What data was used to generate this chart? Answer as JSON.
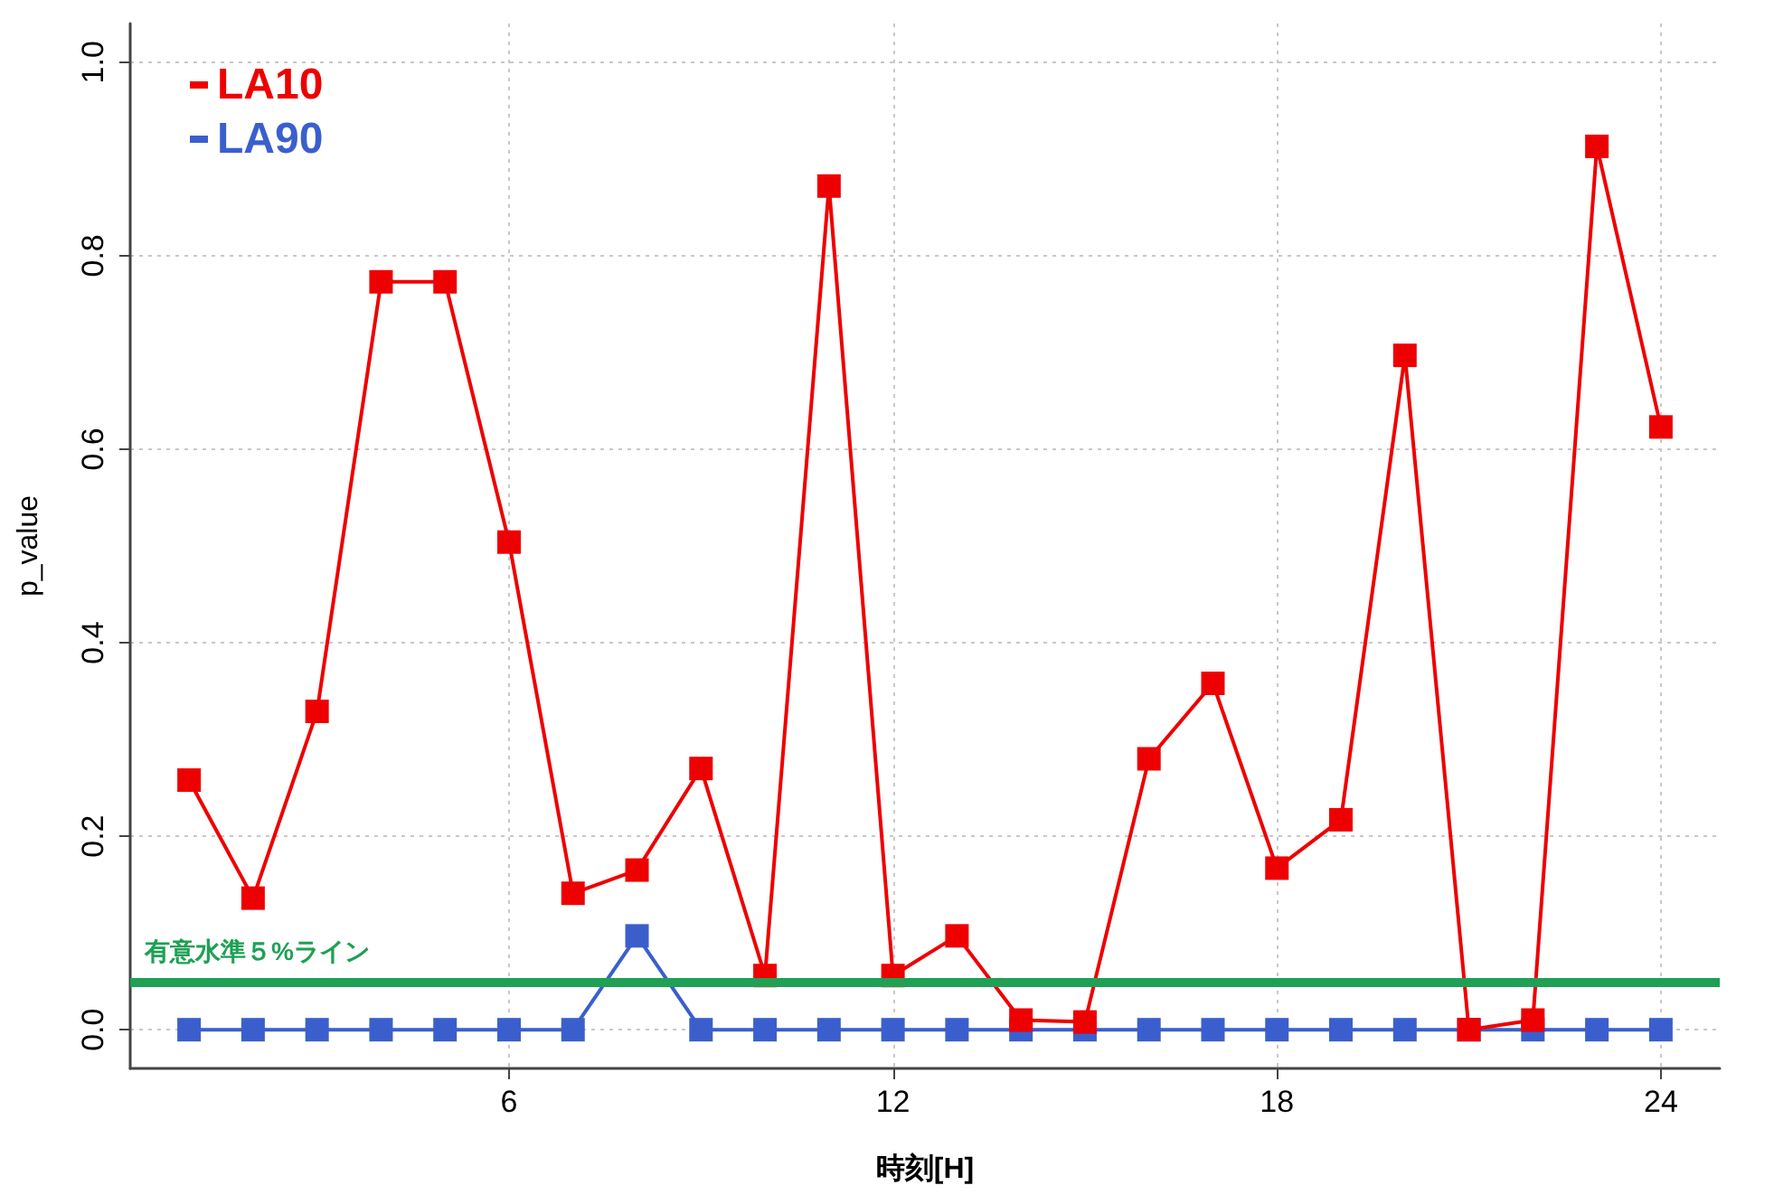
{
  "chart_data": {
    "type": "line",
    "xlabel": "時刻[H]",
    "ylabel": "p_value",
    "x": [
      1,
      2,
      3,
      4,
      5,
      6,
      7,
      8,
      9,
      10,
      11,
      12,
      13,
      14,
      15,
      16,
      17,
      18,
      19,
      20,
      21,
      22,
      23,
      24
    ],
    "series": [
      {
        "name": "LA10",
        "color": "#ee0000",
        "values": [
          0.258,
          0.136,
          0.329,
          0.773,
          0.773,
          0.504,
          0.141,
          0.165,
          0.27,
          0.056,
          0.872,
          0.056,
          0.097,
          0.01,
          0.008,
          0.28,
          0.358,
          0.167,
          0.217,
          0.697,
          0.0,
          0.01,
          0.913,
          0.623
        ]
      },
      {
        "name": "LA90",
        "color": "#3a5fcd",
        "values": [
          0,
          0,
          0,
          0,
          0,
          0,
          0,
          0.097,
          0,
          0,
          0,
          0,
          0,
          0,
          0,
          0,
          0,
          0,
          0,
          0,
          0,
          0,
          0,
          0
        ]
      }
    ],
    "xlim": [
      0.08,
      24.92
    ],
    "xticks": [
      6,
      12,
      18,
      24
    ],
    "ylim": [
      -0.04,
      1.04
    ],
    "yticks": [
      {
        "value": 0,
        "label": "0.0"
      },
      0.2,
      0.4,
      0.6,
      0.8,
      {
        "value": 1,
        "label": "1.0"
      }
    ],
    "ref_lines": [
      {
        "axis": "y",
        "value": 0.05,
        "label": "有意水準５%ライン",
        "color": "#1fa055"
      }
    ],
    "grid": true,
    "legend": "top left",
    "marker": "square",
    "line_style": "solid"
  }
}
